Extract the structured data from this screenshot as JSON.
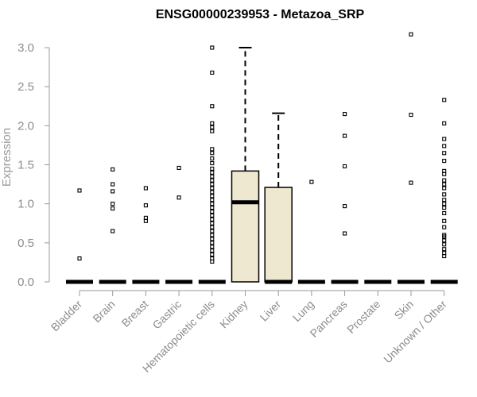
{
  "chart_data": {
    "type": "box",
    "title": "ENSG00000239953 - Metazoa_SRP",
    "xlabel": "",
    "ylabel": "Expression",
    "ylim": [
      0,
      3.2
    ],
    "yticks": [
      "0.0",
      "0.5",
      "1.0",
      "1.5",
      "2.0",
      "2.5",
      "3.0"
    ],
    "grid": false,
    "box_fill": "#efe8d0",
    "categories": [
      {
        "name": "Bladder",
        "q1": 0,
        "median": 0,
        "q3": 0,
        "whisker_low": 0,
        "whisker_high": 0,
        "outliers": [
          0.3,
          1.17
        ]
      },
      {
        "name": "Brain",
        "q1": 0,
        "median": 0,
        "q3": 0,
        "whisker_low": 0,
        "whisker_high": 0,
        "outliers": [
          0.65,
          0.94,
          1.0,
          1.16,
          1.25,
          1.44
        ]
      },
      {
        "name": "Breast",
        "q1": 0,
        "median": 0,
        "q3": 0,
        "whisker_low": 0,
        "whisker_high": 0,
        "outliers": [
          0.78,
          0.82,
          0.98,
          1.2
        ]
      },
      {
        "name": "Gastric",
        "q1": 0,
        "median": 0,
        "q3": 0,
        "whisker_low": 0,
        "whisker_high": 0,
        "outliers": [
          1.08,
          1.46
        ]
      },
      {
        "name": "Hematopoietic cells",
        "q1": 0,
        "median": 0,
        "q3": 0,
        "whisker_low": 0,
        "whisker_high": 0,
        "outliers": [
          0.26,
          0.3,
          0.35,
          0.4,
          0.45,
          0.5,
          0.55,
          0.6,
          0.65,
          0.7,
          0.75,
          0.8,
          0.85,
          0.9,
          0.95,
          1.0,
          1.05,
          1.1,
          1.15,
          1.2,
          1.25,
          1.3,
          1.35,
          1.4,
          1.45,
          1.52,
          1.58,
          1.65,
          1.7,
          1.93,
          1.98,
          2.03,
          2.25,
          2.68,
          3.0
        ]
      },
      {
        "name": "Kidney",
        "q1": 0,
        "median": 1.02,
        "q3": 1.42,
        "whisker_low": 0,
        "whisker_high": 3.0,
        "outliers": []
      },
      {
        "name": "Liver",
        "q1": 0,
        "median": 0,
        "q3": 1.21,
        "whisker_low": 0,
        "whisker_high": 2.16,
        "outliers": []
      },
      {
        "name": "Lung",
        "q1": 0,
        "median": 0,
        "q3": 0,
        "whisker_low": 0,
        "whisker_high": 0,
        "outliers": [
          1.28
        ]
      },
      {
        "name": "Pancreas",
        "q1": 0,
        "median": 0,
        "q3": 0,
        "whisker_low": 0,
        "whisker_high": 0,
        "outliers": [
          0.62,
          0.97,
          1.48,
          1.87,
          2.15
        ]
      },
      {
        "name": "Prostate",
        "q1": 0,
        "median": 0,
        "q3": 0,
        "whisker_low": 0,
        "whisker_high": 0,
        "outliers": []
      },
      {
        "name": "Skin",
        "q1": 0,
        "median": 0,
        "q3": 0,
        "whisker_low": 0,
        "whisker_high": 0,
        "outliers": [
          1.27,
          2.14,
          3.17
        ]
      },
      {
        "name": "Unknown / Other",
        "q1": 0,
        "median": 0,
        "q3": 0,
        "whisker_low": 0,
        "whisker_high": 0,
        "outliers": [
          0.33,
          0.37,
          0.42,
          0.48,
          0.53,
          0.58,
          0.6,
          0.7,
          0.78,
          0.88,
          0.95,
          1.0,
          1.05,
          1.12,
          1.2,
          1.25,
          1.3,
          1.38,
          1.42,
          1.55,
          1.65,
          1.74,
          1.83,
          2.03,
          2.33
        ]
      }
    ]
  }
}
